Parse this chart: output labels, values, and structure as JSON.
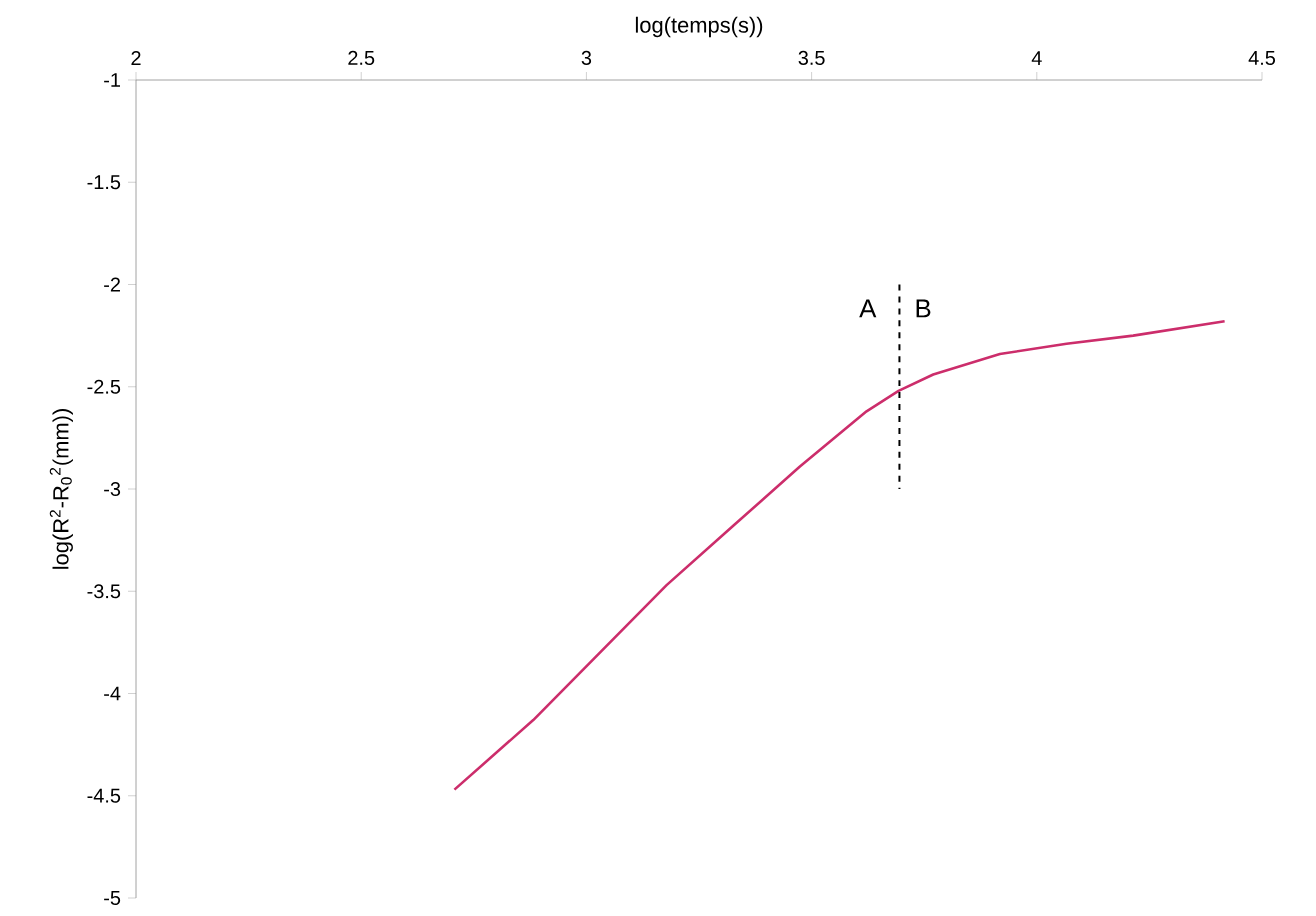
{
  "chart_data": {
    "type": "line",
    "xlabel": "log(temps(s))",
    "ylabel": "log(R$^{2}$-R$_{0}$$^{2}$(mm))",
    "xlim": [
      2,
      4.5
    ],
    "xticks": [
      2,
      2.5,
      3,
      3.5,
      4,
      4.5
    ],
    "ylim": [
      -5,
      -1
    ],
    "yticks": [
      -5,
      -4.5,
      -4,
      -3.5,
      -3,
      -2.5,
      -2,
      -1.5,
      -1
    ],
    "grid": false,
    "marker": "none",
    "series": [
      {
        "color": "#cc2d6b",
        "line_style": "solid",
        "x": [
          2.707,
          2.882,
          3.03,
          3.178,
          3.326,
          3.474,
          3.622,
          3.693,
          3.77,
          3.918,
          4.066,
          4.214,
          4.417
        ],
        "values": [
          -4.47,
          -4.13,
          -3.8,
          -3.47,
          -3.18,
          -2.89,
          -2.62,
          -2.52,
          -2.44,
          -2.34,
          -2.29,
          -2.25,
          -2.18
        ]
      },
      {
        "color": "#000000",
        "line_style": "dashed",
        "x": [
          3.695,
          3.695
        ],
        "values": [
          -2.0,
          -3.0
        ]
      }
    ],
    "annotations": [
      "A",
      "B"
    ]
  }
}
